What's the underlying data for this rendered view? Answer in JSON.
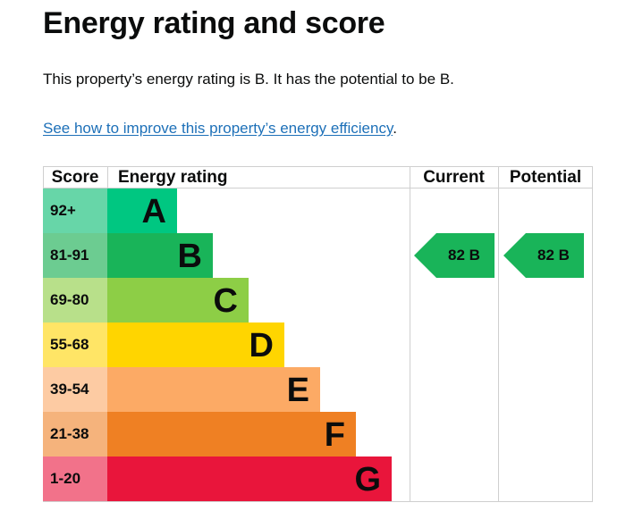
{
  "heading": "Energy rating and score",
  "description": "This property’s energy rating is B. It has the potential to be B.",
  "link": {
    "text": "See how to improve this property’s energy efficiency",
    "suffix": "."
  },
  "table": {
    "headers": {
      "score": "Score",
      "energy_rating": "Energy rating",
      "current": "Current",
      "potential": "Potential"
    },
    "bands": [
      {
        "score": "92+",
        "letter": "A",
        "bar_color": "#00c781",
        "score_bg": "#67d6a8"
      },
      {
        "score": "81-91",
        "letter": "B",
        "bar_color": "#19b459",
        "score_bg": "#6ccc91"
      },
      {
        "score": "69-80",
        "letter": "C",
        "bar_color": "#8dce46",
        "score_bg": "#b8e08a"
      },
      {
        "score": "55-68",
        "letter": "D",
        "bar_color": "#ffd500",
        "score_bg": "#ffe566"
      },
      {
        "score": "39-54",
        "letter": "E",
        "bar_color": "#fcaa65",
        "score_bg": "#fdcba3"
      },
      {
        "score": "21-38",
        "letter": "F",
        "bar_color": "#ef8023",
        "score_bg": "#f5b37c"
      },
      {
        "score": "1-20",
        "letter": "G",
        "bar_color": "#e9153b",
        "score_bg": "#f2728a"
      }
    ],
    "current": {
      "text": "82 B",
      "color": "#19b459"
    },
    "potential": {
      "text": "82 B",
      "color": "#19b459"
    }
  }
}
